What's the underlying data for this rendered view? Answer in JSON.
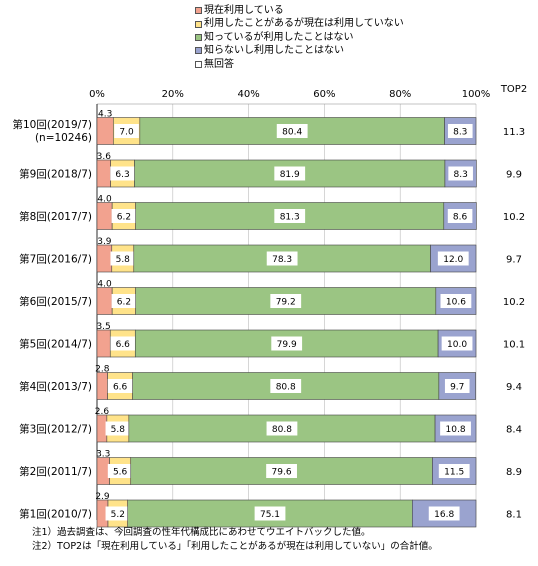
{
  "chart_data": {
    "type": "bar",
    "orientation": "horizontal",
    "stacked": true,
    "x_ticks": [
      "0%",
      "20%",
      "40%",
      "60%",
      "80%",
      "100%"
    ],
    "xlim": [
      0,
      100
    ],
    "extra_column_header": "TOP2",
    "legend": [
      {
        "label": "現在利用している",
        "color": "#f2a28f"
      },
      {
        "label": "利用したことがあるが現在は利用していない",
        "color": "#ffe38a"
      },
      {
        "label": "知っているが利用したことはない",
        "color": "#9bc583"
      },
      {
        "label": "知らないし利用したことはない",
        "color": "#9aa3cf"
      },
      {
        "label": "無回答",
        "color": "#ffffff"
      }
    ],
    "categories": [
      {
        "line1": "第10回(2019/7)",
        "line2": "(n=10246)"
      },
      {
        "line1": "第9回(2018/7)",
        "line2": ""
      },
      {
        "line1": "第8回(2017/7)",
        "line2": ""
      },
      {
        "line1": "第7回(2016/7)",
        "line2": ""
      },
      {
        "line1": "第6回(2015/7)",
        "line2": ""
      },
      {
        "line1": "第5回(2014/7)",
        "line2": ""
      },
      {
        "line1": "第4回(2013/7)",
        "line2": ""
      },
      {
        "line1": "第3回(2012/7)",
        "line2": ""
      },
      {
        "line1": "第2回(2011/7)",
        "line2": ""
      },
      {
        "line1": "第1回(2010/7)",
        "line2": ""
      }
    ],
    "series": [
      {
        "name": "現在利用している",
        "values": [
          4.3,
          3.6,
          4.0,
          3.9,
          4.0,
          3.5,
          2.8,
          2.6,
          3.3,
          2.9
        ]
      },
      {
        "name": "利用したことがあるが現在は利用していない",
        "values": [
          7.0,
          6.3,
          6.2,
          5.8,
          6.2,
          6.6,
          6.6,
          5.8,
          5.6,
          5.2
        ]
      },
      {
        "name": "知っているが利用したことはない",
        "values": [
          80.4,
          81.9,
          81.3,
          78.3,
          79.2,
          79.9,
          80.8,
          80.8,
          79.6,
          75.1
        ]
      },
      {
        "name": "知らないし利用したことはない",
        "values": [
          8.3,
          8.3,
          8.6,
          12.0,
          10.6,
          10.0,
          9.7,
          10.8,
          11.5,
          16.8
        ]
      }
    ],
    "top2": [
      11.3,
      9.9,
      10.2,
      9.7,
      10.2,
      10.1,
      9.4,
      8.4,
      8.9,
      8.1
    ]
  },
  "notes": [
    "注1）過去調査は、今回調査の性年代構成比にあわせてウエイトバックした値。",
    "注2）TOP2は「現在利用している」「利用したことがあるが現在は利用していない」の合計値。"
  ]
}
